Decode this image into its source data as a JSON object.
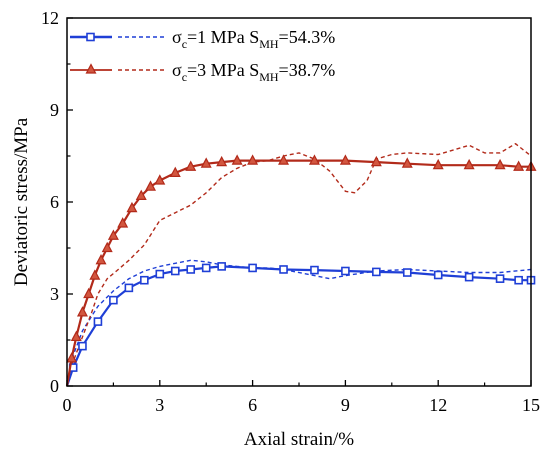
{
  "chart_data": {
    "type": "line",
    "xlabel": "Axial strain/%",
    "ylabel": "Deviatoric stress/MPa",
    "xlim": [
      0,
      15
    ],
    "ylim": [
      0,
      12
    ],
    "xticks": [
      "0",
      "3",
      "6",
      "9",
      "12",
      "15"
    ],
    "yticks": [
      "0",
      "3",
      "6",
      "9",
      "12"
    ],
    "grid": false,
    "legend_position": "top-left",
    "legend": [
      {
        "sigma": "σ",
        "sub_c": "c",
        "mid": "=1 MPa S",
        "sub_mh": "MH",
        "tail": "=54.3%"
      },
      {
        "sigma": "σ",
        "sub_c": "c",
        "mid": "=3 MPa S",
        "sub_mh": "MH",
        "tail": "=38.7%"
      }
    ],
    "series": [
      {
        "name": "σc=1 MPa SMH=54.3%",
        "color": "#1f3fd6",
        "marker": "square",
        "style": "solid",
        "x": [
          0,
          0.2,
          0.5,
          1.0,
          1.5,
          2.0,
          2.5,
          3.0,
          3.5,
          4.0,
          4.5,
          5.0,
          6.0,
          7.0,
          8.0,
          9.0,
          10.0,
          11.0,
          12.0,
          13.0,
          14.0,
          14.6,
          15.0
        ],
        "y": [
          0,
          0.6,
          1.3,
          2.1,
          2.8,
          3.2,
          3.45,
          3.65,
          3.75,
          3.8,
          3.85,
          3.9,
          3.85,
          3.8,
          3.78,
          3.75,
          3.72,
          3.7,
          3.62,
          3.55,
          3.5,
          3.45,
          3.45
        ]
      },
      {
        "name": "σc=1 MPa SMH=54.3% (dashed)",
        "color": "#1f3fd6",
        "marker": "none",
        "style": "dashed",
        "x": [
          0,
          0.2,
          0.5,
          1.0,
          1.5,
          2.0,
          2.5,
          3.0,
          3.5,
          4.0,
          4.5,
          5.0,
          5.5,
          6.0,
          6.5,
          7.0,
          8.0,
          8.5,
          9.0,
          10.0,
          11.0,
          12.0,
          13.0,
          14.0,
          15.0
        ],
        "y": [
          0,
          1.0,
          1.8,
          2.6,
          3.1,
          3.5,
          3.75,
          3.9,
          4.0,
          4.1,
          4.05,
          3.95,
          3.9,
          3.85,
          3.85,
          3.8,
          3.6,
          3.5,
          3.6,
          3.75,
          3.8,
          3.75,
          3.7,
          3.7,
          3.8
        ]
      },
      {
        "name": "σc=3 MPa SMH=38.7%",
        "color": "#b22a1a",
        "marker": "triangle",
        "style": "solid",
        "x": [
          0,
          0.15,
          0.3,
          0.5,
          0.7,
          0.9,
          1.1,
          1.3,
          1.5,
          1.8,
          2.1,
          2.4,
          2.7,
          3.0,
          3.5,
          4.0,
          4.5,
          5.0,
          5.5,
          6.0,
          7.0,
          8.0,
          9.0,
          10.0,
          11.0,
          12.0,
          13.0,
          14.0,
          14.6,
          15.0
        ],
        "y": [
          0,
          0.9,
          1.6,
          2.4,
          3.0,
          3.6,
          4.1,
          4.5,
          4.9,
          5.3,
          5.8,
          6.2,
          6.5,
          6.7,
          6.95,
          7.15,
          7.25,
          7.3,
          7.35,
          7.35,
          7.35,
          7.35,
          7.35,
          7.3,
          7.25,
          7.2,
          7.2,
          7.2,
          7.15,
          7.15
        ]
      },
      {
        "name": "σc=3 MPa SMH=38.7% (dashed)",
        "color": "#b22a1a",
        "marker": "none",
        "style": "dashed",
        "x": [
          0,
          0.2,
          0.5,
          0.8,
          1.0,
          1.3,
          1.6,
          2.0,
          2.5,
          3.0,
          3.5,
          4.0,
          4.5,
          5.0,
          5.5,
          6.0,
          6.5,
          7.0,
          7.5,
          8.0,
          8.5,
          9.0,
          9.3,
          9.7,
          10.0,
          10.5,
          11.0,
          12.0,
          12.5,
          13.0,
          13.5,
          14.0,
          14.5,
          15.0
        ],
        "y": [
          0,
          0.8,
          1.6,
          2.4,
          3.0,
          3.5,
          3.75,
          4.1,
          4.6,
          5.4,
          5.65,
          5.9,
          6.3,
          6.8,
          7.1,
          7.3,
          7.35,
          7.5,
          7.6,
          7.4,
          7.0,
          6.35,
          6.3,
          6.7,
          7.4,
          7.55,
          7.6,
          7.55,
          7.7,
          7.85,
          7.6,
          7.6,
          7.9,
          7.5
        ]
      }
    ]
  }
}
